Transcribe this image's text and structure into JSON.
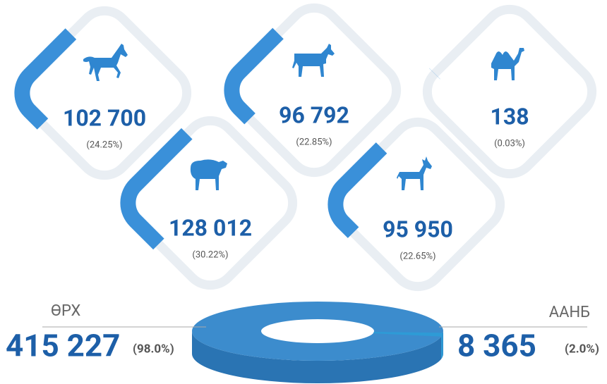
{
  "livestock": [
    {
      "count": 102700,
      "count_label": "102 700",
      "share": 24.25,
      "share_label": "(24.25%)"
    },
    {
      "count": 96792,
      "count_label": "96 792",
      "share": 22.85,
      "share_label": "(22.85%)"
    },
    {
      "count": 138,
      "count_label": "138",
      "share": 0.03,
      "share_label": "(0.03%)"
    },
    {
      "count": 128012,
      "count_label": "128 012",
      "share": 30.22,
      "share_label": "(30.22%)"
    },
    {
      "count": 95950,
      "count_label": "95 950",
      "share": 22.65,
      "share_label": "(22.65%)"
    }
  ],
  "ownership": [
    {
      "name": "ӨРХ",
      "count": 415227,
      "count_label": "415 227",
      "share": 98.0,
      "share_label": "(98.0%)"
    },
    {
      "name": "ААНБ",
      "count": 8365,
      "count_label": "8 365",
      "share": 2.0,
      "share_label": "(2.0%)"
    }
  ]
}
